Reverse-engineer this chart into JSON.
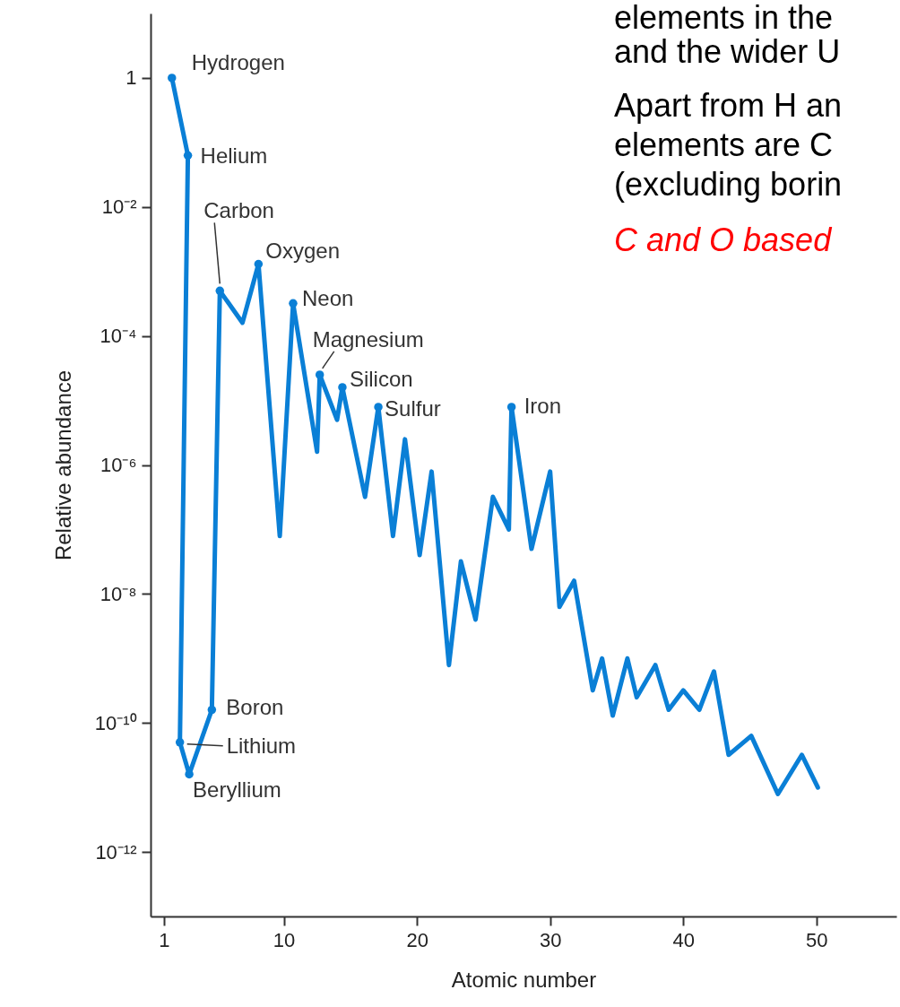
{
  "chart_data": {
    "type": "line",
    "xlabel": "Atomic number",
    "ylabel": "Relative abundance",
    "color": "#0a7fd6",
    "log": "y",
    "x": [
      1.6,
      2.8,
      2.2,
      2.9,
      4.6,
      5.2,
      6.9,
      8.1,
      9.7,
      10.7,
      12.5,
      12.7,
      14.0,
      14.4,
      16.1,
      17.1,
      18.2,
      19.1,
      20.2,
      21.1,
      22.4,
      23.3,
      24.4,
      25.7,
      26.9,
      27.1,
      28.6,
      30.0,
      30.7,
      31.8,
      33.2,
      33.9,
      34.7,
      35.8,
      36.5,
      37.9,
      38.9,
      40.0,
      41.2,
      42.3,
      43.4,
      45.1,
      47.1,
      48.9,
      50.1
    ],
    "values": [
      1,
      0.063,
      5e-11,
      1.6e-11,
      1.6e-10,
      0.0005,
      0.00016,
      0.0013,
      7.9e-08,
      0.00032,
      1.6e-06,
      2.5e-05,
      5e-06,
      1.6e-05,
      3.2e-07,
      7.9e-06,
      7.9e-08,
      2.5e-06,
      4e-08,
      7.9e-07,
      7.9e-10,
      3.2e-08,
      4e-09,
      3.2e-07,
      1e-07,
      7.9e-06,
      5e-08,
      7.9e-07,
      6.3e-09,
      1.6e-08,
      3.2e-10,
      1e-09,
      1.3e-10,
      1e-09,
      2.5e-10,
      7.9e-10,
      1.6e-10,
      3.2e-10,
      1.6e-10,
      6.3e-10,
      3.2e-11,
      6.3e-11,
      7.9e-12,
      3.2e-11,
      1e-11
    ],
    "xlim": [
      0,
      56
    ],
    "xticks": [
      1,
      10,
      20,
      30,
      40,
      50
    ],
    "ylim": [
      1e-13,
      10
    ],
    "yticks": [
      1,
      {
        "value": 0.01,
        "label": "10⁻²"
      },
      {
        "value": 0.0001,
        "label": "10⁻⁴"
      },
      {
        "value": 1e-06,
        "label": "10⁻⁶"
      },
      {
        "value": 1e-08,
        "label": "10⁻⁸"
      },
      {
        "value": 1e-10,
        "label": "10⁻¹⁰"
      },
      {
        "value": 1e-12,
        "label": "10⁻¹²"
      }
    ],
    "annotations": [
      {
        "text": "Hydrogen",
        "x": 1.6,
        "y": 1
      },
      {
        "text": "Helium",
        "x": 2.8,
        "y": 0.063
      },
      {
        "text": "Lithium",
        "x": 2.2,
        "y": 5e-11
      },
      {
        "text": "Beryllium",
        "x": 2.9,
        "y": 1.6e-11
      },
      {
        "text": "Boron",
        "x": 4.6,
        "y": 1.6e-10
      },
      {
        "text": "Carbon",
        "x": 5.2,
        "y": 0.0005
      },
      {
        "text": "Oxygen",
        "x": 8.1,
        "y": 0.0013
      },
      {
        "text": "Neon",
        "x": 10.7,
        "y": 0.00032
      },
      {
        "text": "Magnesium",
        "x": 12.7,
        "y": 2.5e-05
      },
      {
        "text": "Silicon",
        "x": 14.4,
        "y": 1.6e-05
      },
      {
        "text": "Sulfur",
        "x": 17.1,
        "y": 7.9e-06
      },
      {
        "text": "Iron",
        "x": 27.1,
        "y": 7.9e-06
      },
      "elements in the",
      "and the wider U",
      "Apart from H an",
      "elements are C",
      "(excluding borin",
      "C and O based"
    ]
  }
}
